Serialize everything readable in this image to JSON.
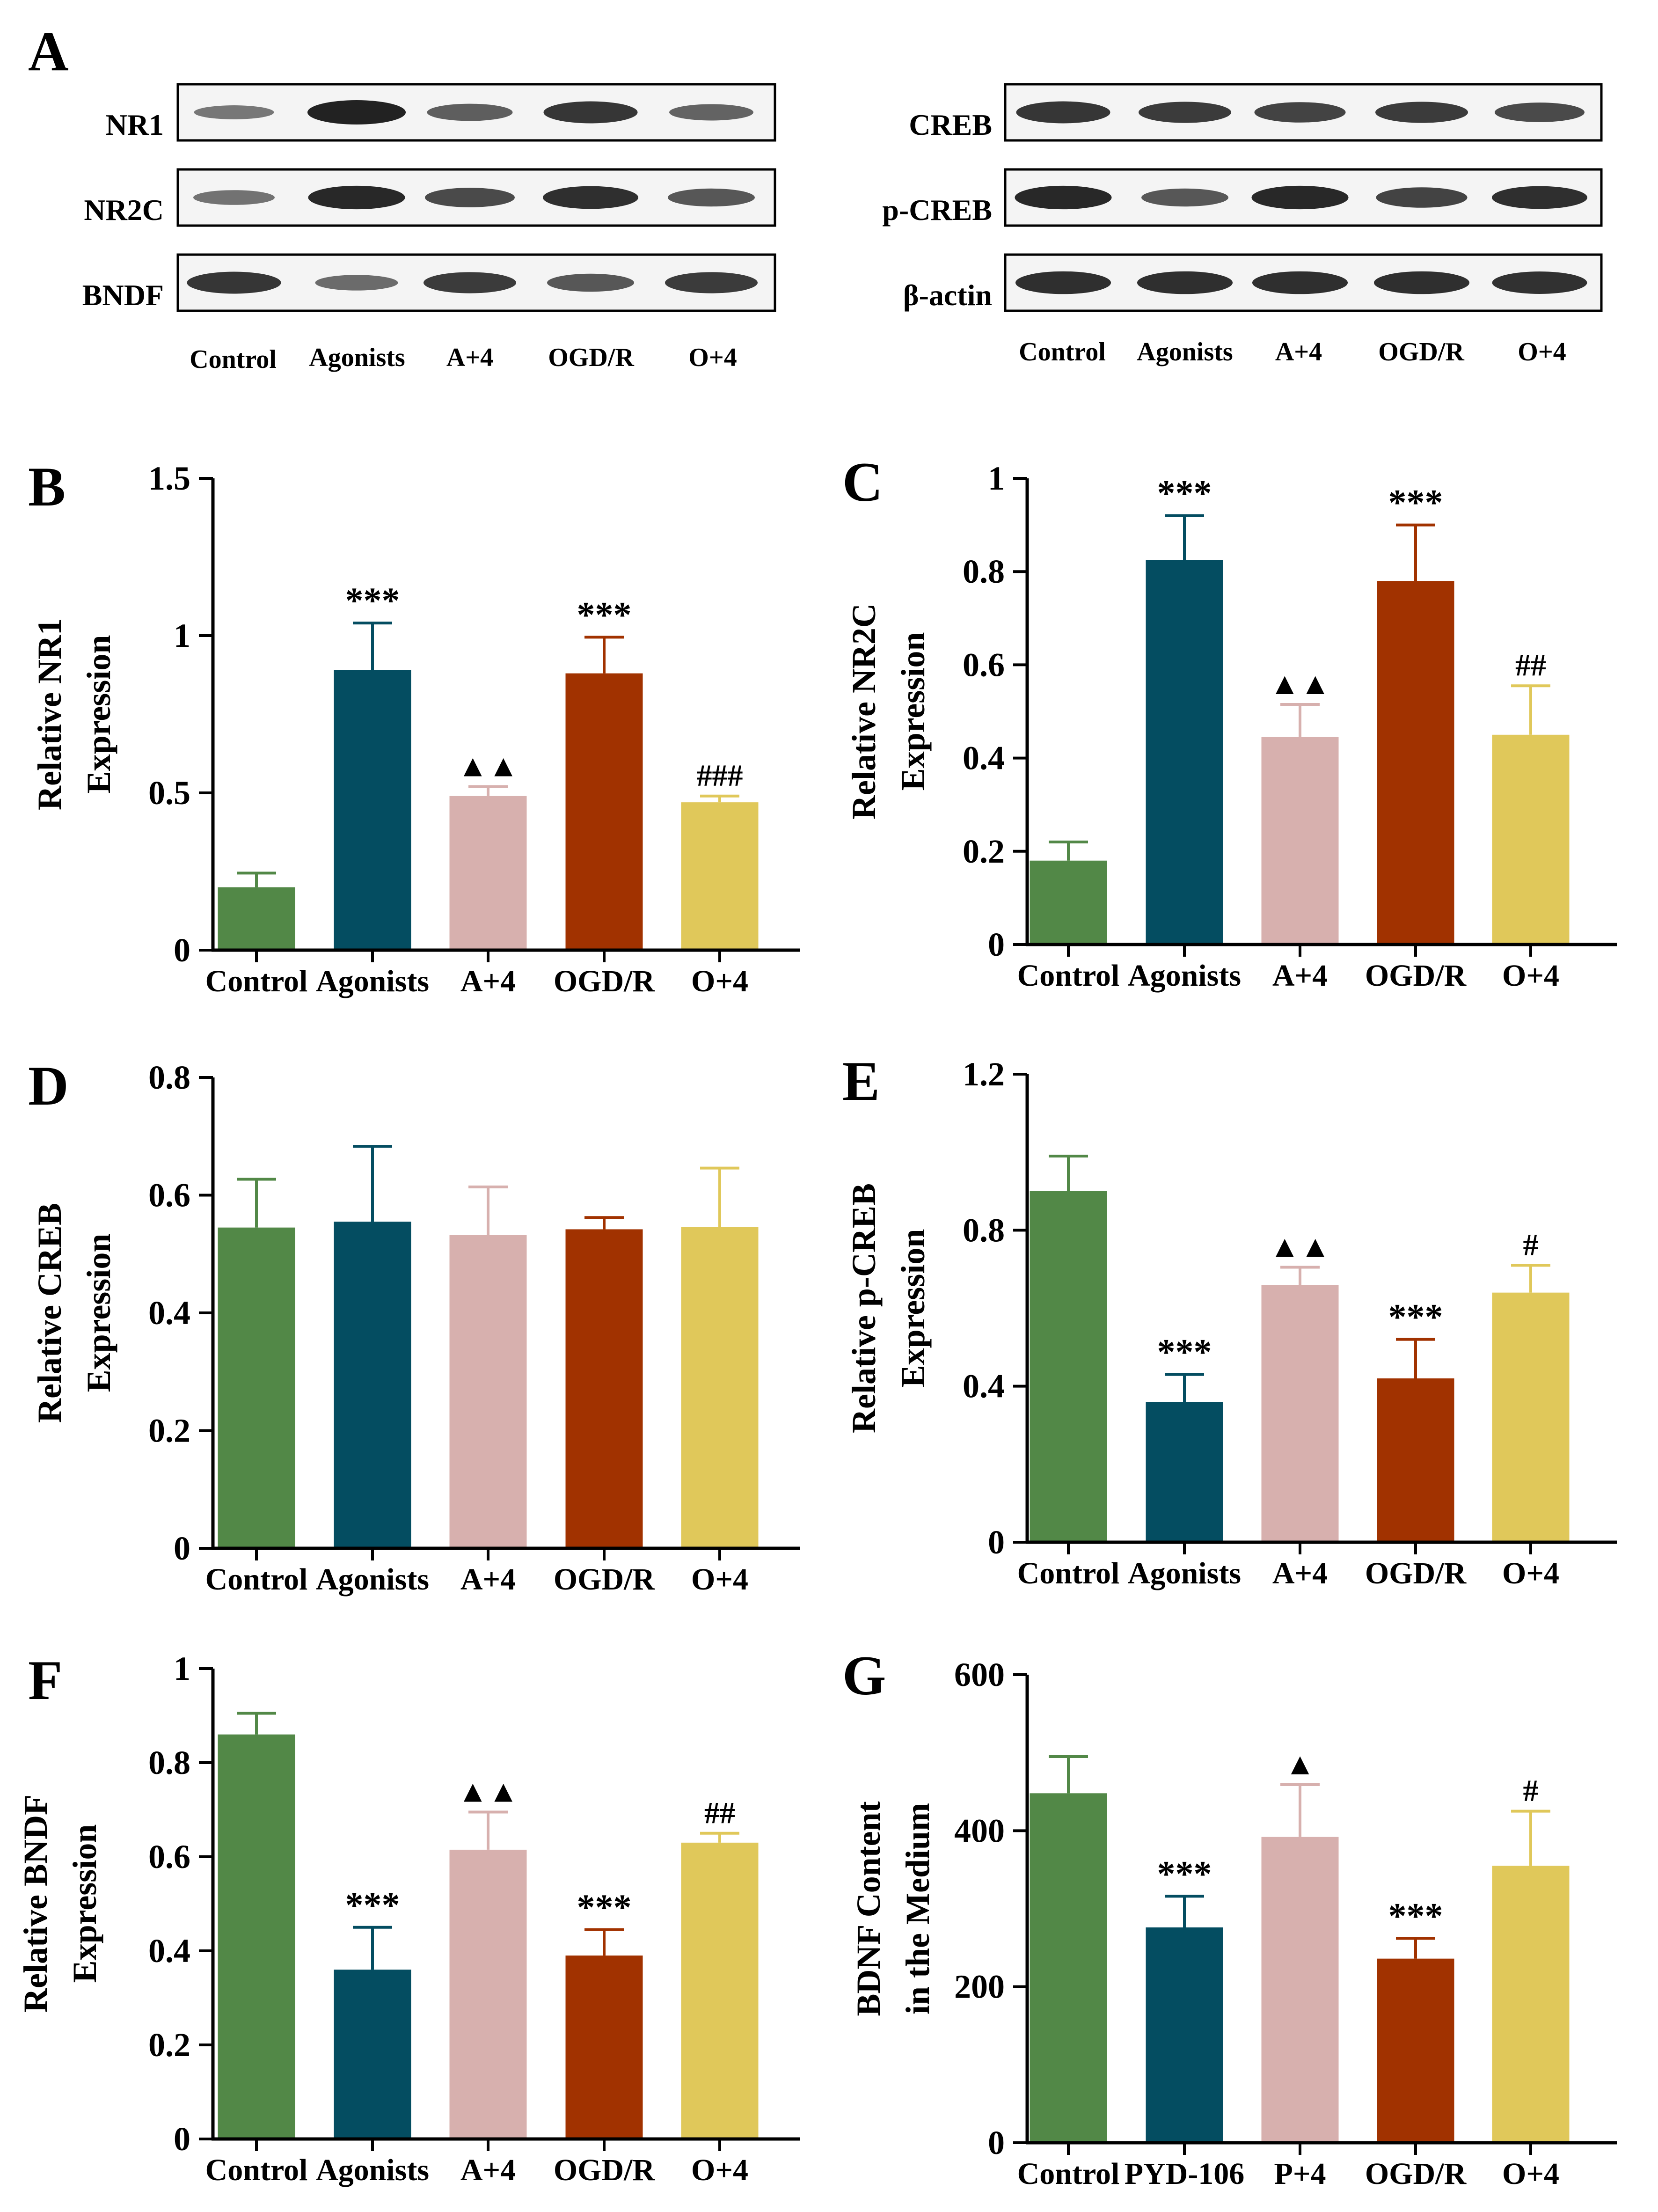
{
  "figure": {
    "panel_a_label": "A",
    "colors": {
      "Control": "#528847",
      "Agonists": "#044d61",
      "PYD-106": "#044d61",
      "A+4": "#d7b0ae",
      "P+4": "#d7b0ae",
      "OGD/R": "#a13200",
      "O+4": "#e0c85a"
    }
  },
  "western_blot": {
    "left": {
      "rows": [
        "NR1",
        "NR2C",
        "BNDF"
      ],
      "lanes": [
        "Control",
        "Agonists",
        "A+4",
        "OGD/R",
        "O+4"
      ],
      "band_intensity": [
        [
          0.35,
          1.0,
          0.55,
          0.85,
          0.5
        ],
        [
          0.4,
          0.95,
          0.7,
          0.9,
          0.6
        ],
        [
          0.85,
          0.45,
          0.8,
          0.6,
          0.8
        ]
      ]
    },
    "right": {
      "rows": [
        "CREB",
        "p-CREB",
        "β-actin"
      ],
      "lanes": [
        "Control",
        "Agonists",
        "A+4",
        "OGD/R",
        "O+4"
      ],
      "band_intensity": [
        [
          0.85,
          0.8,
          0.75,
          0.8,
          0.7
        ],
        [
          0.95,
          0.6,
          0.95,
          0.75,
          0.9
        ],
        [
          0.9,
          0.9,
          0.9,
          0.9,
          0.88
        ]
      ]
    }
  },
  "chart_data": [
    {
      "panel": "B",
      "type": "bar",
      "categories": [
        "Control",
        "Agonists",
        "A+4",
        "OGD/R",
        "O+4"
      ],
      "values": [
        0.2,
        0.89,
        0.49,
        0.88,
        0.47
      ],
      "errors": [
        0.045,
        0.15,
        0.03,
        0.115,
        0.02
      ],
      "annotations": [
        "",
        "***",
        "▲▲",
        "***",
        "###"
      ],
      "ylabel": [
        "Relative NR1",
        "Expression"
      ],
      "ylim": [
        0,
        1.5
      ],
      "yticks": [
        0,
        0.5,
        1,
        1.5
      ],
      "ytick_labels": [
        "0",
        "0.5",
        "1",
        "1.5"
      ]
    },
    {
      "panel": "C",
      "type": "bar",
      "categories": [
        "Control",
        "Agonists",
        "A+4",
        "OGD/R",
        "O+4"
      ],
      "values": [
        0.18,
        0.825,
        0.445,
        0.78,
        0.45
      ],
      "errors": [
        0.04,
        0.095,
        0.07,
        0.12,
        0.105
      ],
      "annotations": [
        "",
        "***",
        "▲▲",
        "***",
        "##"
      ],
      "ylabel": [
        "Relative NR2C",
        "Expression"
      ],
      "ylim": [
        0,
        1
      ],
      "yticks": [
        0,
        0.2,
        0.4,
        0.6,
        0.8,
        1
      ],
      "ytick_labels": [
        "0",
        "0.2",
        "0.4",
        "0.6",
        "0.8",
        "1"
      ]
    },
    {
      "panel": "D",
      "type": "bar",
      "categories": [
        "Control",
        "Agonists",
        "A+4",
        "OGD/R",
        "O+4"
      ],
      "values": [
        0.545,
        0.555,
        0.532,
        0.542,
        0.546
      ],
      "errors": [
        0.082,
        0.128,
        0.082,
        0.02,
        0.1
      ],
      "annotations": [
        "",
        "",
        "",
        "",
        ""
      ],
      "ylabel": [
        "Relative CREB",
        "Expression"
      ],
      "ylim": [
        0,
        0.8
      ],
      "yticks": [
        0,
        0.2,
        0.4,
        0.6,
        0.8
      ],
      "ytick_labels": [
        "0",
        "0.2",
        "0.4",
        "0.6",
        "0.8"
      ]
    },
    {
      "panel": "E",
      "type": "bar",
      "categories": [
        "Control",
        "Agonists",
        "A+4",
        "OGD/R",
        "O+4"
      ],
      "values": [
        0.9,
        0.36,
        0.66,
        0.42,
        0.64
      ],
      "errors": [
        0.09,
        0.07,
        0.045,
        0.1,
        0.07
      ],
      "annotations": [
        "",
        "***",
        "▲▲",
        "***",
        "#"
      ],
      "ylabel": [
        "Relative p-CREB",
        "Expression"
      ],
      "ylim": [
        0,
        1.2
      ],
      "yticks": [
        0,
        0.4,
        0.8,
        1.2
      ],
      "ytick_labels": [
        "0",
        "0.4",
        "0.8",
        "1.2"
      ]
    },
    {
      "panel": "F",
      "type": "bar",
      "categories": [
        "Control",
        "Agonists",
        "A+4",
        "OGD/R",
        "O+4"
      ],
      "values": [
        0.86,
        0.36,
        0.615,
        0.39,
        0.63
      ],
      "errors": [
        0.045,
        0.09,
        0.08,
        0.055,
        0.02
      ],
      "annotations": [
        "",
        "***",
        "▲▲",
        "***",
        "##"
      ],
      "ylabel": [
        "Relative BNDF",
        "Expression"
      ],
      "ylim": [
        0,
        1
      ],
      "yticks": [
        0,
        0.2,
        0.4,
        0.6,
        0.8,
        1
      ],
      "ytick_labels": [
        "0",
        "0.2",
        "0.4",
        "0.6",
        "0.8",
        "1"
      ]
    },
    {
      "panel": "G",
      "type": "bar",
      "categories": [
        "Control",
        "PYD-106",
        "P+4",
        "OGD/R",
        "O+4"
      ],
      "values": [
        448,
        276,
        392,
        236,
        355
      ],
      "errors": [
        47,
        40,
        67,
        26,
        70
      ],
      "annotations": [
        "",
        "***",
        "▲",
        "***",
        "#"
      ],
      "ylabel": [
        "BDNF Content",
        "in the Medium"
      ],
      "ylim": [
        0,
        600
      ],
      "yticks": [
        0,
        200,
        400,
        600
      ],
      "ytick_labels": [
        "0",
        "200",
        "400",
        "600"
      ]
    }
  ]
}
